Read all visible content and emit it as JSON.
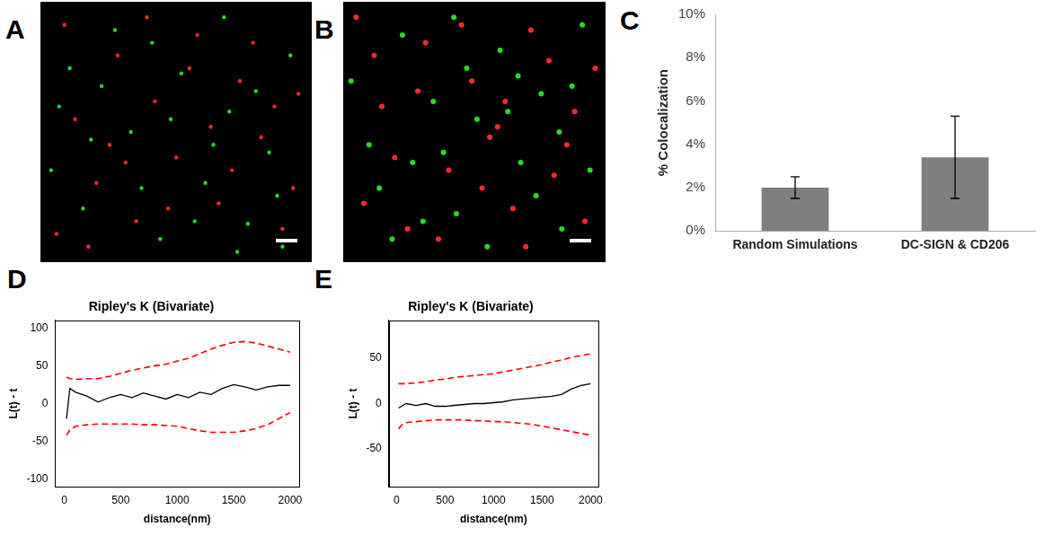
{
  "chart_data": [
    {
      "panel": "A",
      "type": "scatter",
      "tick_labels": false,
      "grid": false,
      "xlim": [
        0,
        100
      ],
      "ylim": [
        0,
        100
      ],
      "series": [
        {
          "color": "#ff2a2a",
          "x": [
            5,
            12,
            20,
            28,
            35,
            42,
            50,
            58,
            66,
            74,
            82,
            90,
            96,
            8,
            17,
            25,
            39,
            47,
            55,
            63,
            71,
            79,
            87,
            94,
            31
          ],
          "values": [
            10,
            55,
            30,
            80,
            15,
            62,
            40,
            88,
            22,
            70,
            48,
            12,
            65,
            92,
            5,
            45,
            95,
            20,
            75,
            52,
            35,
            85,
            60,
            28,
            38
          ]
        },
        {
          "color": "#22dd22",
          "x": [
            3,
            15,
            22,
            33,
            44,
            52,
            61,
            70,
            77,
            85,
            93,
            10,
            27,
            37,
            48,
            57,
            68,
            80,
            90,
            6,
            18,
            41,
            64,
            73,
            88
          ],
          "values": [
            35,
            20,
            68,
            50,
            8,
            73,
            30,
            58,
            14,
            42,
            80,
            75,
            90,
            28,
            55,
            15,
            95,
            66,
            5,
            60,
            47,
            85,
            45,
            3,
            25
          ]
        }
      ]
    },
    {
      "panel": "B",
      "type": "scatter",
      "tick_labels": false,
      "grid": false,
      "xlim": [
        0,
        100
      ],
      "ylim": [
        0,
        100
      ],
      "series": [
        {
          "color": "#ff2a2a",
          "x": [
            7,
            14,
            24,
            31,
            40,
            49,
            56,
            65,
            72,
            81,
            89,
            97,
            4,
            19,
            28,
            36,
            45,
            53,
            62,
            70,
            79,
            86,
            93,
            11,
            59
          ],
          "values": [
            22,
            60,
            12,
            85,
            35,
            70,
            48,
            20,
            90,
            33,
            58,
            75,
            95,
            40,
            66,
            8,
            92,
            28,
            62,
            5,
            78,
            45,
            15,
            80,
            52
          ]
        },
        {
          "color": "#22dd22",
          "x": [
            9,
            18,
            26,
            34,
            43,
            51,
            60,
            68,
            76,
            84,
            92,
            2,
            13,
            22,
            38,
            47,
            55,
            63,
            74,
            83,
            95,
            30,
            42,
            67,
            88
          ],
          "values": [
            45,
            8,
            38,
            62,
            18,
            55,
            82,
            38,
            65,
            12,
            92,
            70,
            28,
            88,
            42,
            75,
            5,
            58,
            25,
            50,
            35,
            15,
            95,
            72,
            68
          ]
        }
      ]
    },
    {
      "panel": "C",
      "type": "bar",
      "grid": false,
      "categories": [
        "Random Simulations",
        "DC-SIGN & CD206"
      ],
      "values": [
        2.0,
        3.4
      ],
      "errors": [
        0.5,
        1.9
      ],
      "color": "#7f7f7f",
      "y_label": "% Colocalization",
      "ylim": [
        0,
        10
      ],
      "yticks": [
        {
          "value": 0,
          "label": "0%"
        },
        {
          "value": 2,
          "label": "2%"
        },
        {
          "value": 4,
          "label": "4%"
        },
        {
          "value": 6,
          "label": "6%"
        },
        {
          "value": 8,
          "label": "8%"
        },
        {
          "value": 10,
          "label": "10%"
        }
      ]
    },
    {
      "panel": "D",
      "type": "line",
      "grid": false,
      "title": "Ripley's K (Bivariate)",
      "x_label": "distance(nm)",
      "y_label": "L(t) - t",
      "xlim": [
        -80,
        2080
      ],
      "ylim": [
        -110,
        110
      ],
      "xticks": [
        0,
        500,
        1000,
        1500,
        2000
      ],
      "yticks": [
        -100,
        -50,
        0,
        50,
        100
      ],
      "x": [
        20,
        50,
        100,
        200,
        300,
        400,
        500,
        600,
        700,
        800,
        900,
        1000,
        1100,
        1200,
        1300,
        1400,
        1500,
        1600,
        1700,
        1800,
        1900,
        2000
      ],
      "series": [
        {
          "color": "#000000",
          "line_style": "solid",
          "values": [
            -20,
            20,
            15,
            10,
            2,
            8,
            12,
            8,
            14,
            10,
            6,
            12,
            8,
            15,
            12,
            20,
            25,
            22,
            18,
            22,
            24,
            24
          ]
        },
        {
          "color": "#ff0000",
          "line_style": "dashed",
          "values": [
            35,
            33,
            32,
            33,
            33,
            36,
            40,
            44,
            47,
            50,
            52,
            56,
            60,
            66,
            72,
            77,
            81,
            82,
            80,
            76,
            72,
            68
          ]
        },
        {
          "color": "#ff0000",
          "line_style": "dashed",
          "values": [
            -42,
            -35,
            -30,
            -28,
            -27,
            -27,
            -27,
            -27,
            -28,
            -28,
            -29,
            -30,
            -33,
            -36,
            -38,
            -38,
            -38,
            -36,
            -33,
            -28,
            -20,
            -12
          ]
        }
      ]
    },
    {
      "panel": "E",
      "type": "line",
      "grid": false,
      "title": "Ripley's K (Bivariate)",
      "x_label": "distance(nm)",
      "y_label": "L(t) - t",
      "xlim": [
        -80,
        2080
      ],
      "ylim": [
        -92,
        92
      ],
      "xticks": [
        0,
        500,
        1000,
        1500,
        2000
      ],
      "yticks": [
        -50,
        0,
        50
      ],
      "x": [
        20,
        50,
        100,
        200,
        300,
        400,
        500,
        600,
        700,
        800,
        900,
        1000,
        1100,
        1200,
        1300,
        1400,
        1500,
        1600,
        1700,
        1800,
        1900,
        2000
      ],
      "series": [
        {
          "color": "#000000",
          "line_style": "solid",
          "values": [
            -5,
            -3,
            0,
            -2,
            0,
            -3,
            -3,
            -2,
            -1,
            0,
            0,
            1,
            2,
            4,
            5,
            6,
            7,
            8,
            10,
            16,
            20,
            22
          ]
        },
        {
          "color": "#ff0000",
          "line_style": "dashed",
          "values": [
            22,
            22,
            22,
            23,
            24,
            26,
            27,
            29,
            30,
            31,
            32,
            33,
            35,
            37,
            39,
            41,
            43,
            46,
            48,
            51,
            53,
            55
          ]
        },
        {
          "color": "#ff0000",
          "line_style": "dashed",
          "values": [
            -28,
            -24,
            -21,
            -20,
            -19,
            -18,
            -18,
            -18,
            -18,
            -19,
            -19,
            -20,
            -20,
            -21,
            -22,
            -23,
            -25,
            -27,
            -29,
            -31,
            -33,
            -35
          ]
        }
      ]
    }
  ]
}
